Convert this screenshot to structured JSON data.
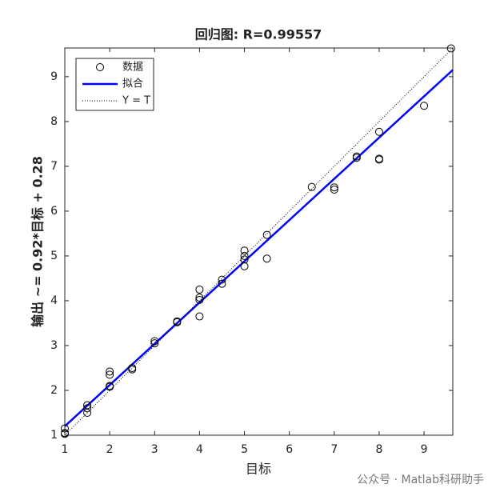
{
  "chart_data": {
    "type": "scatter",
    "title": "回归图: R=0.99557",
    "xlabel": "目标",
    "ylabel": "输出 ~= 0.92*目标 + 0.28",
    "watermark": "公众号 · Matlab科研助手",
    "xlim": [
      1,
      9.64
    ],
    "ylim": [
      1,
      9.64
    ],
    "xticks": [
      1,
      2,
      3,
      4,
      5,
      6,
      7,
      8,
      9
    ],
    "yticks": [
      1,
      2,
      3,
      4,
      5,
      6,
      7,
      8,
      9
    ],
    "legend": "upper left",
    "series": [
      {
        "name": "数据",
        "type": "scatter",
        "color": "#000000",
        "x": [
          1,
          1,
          1,
          1.5,
          1.5,
          1.5,
          2,
          2,
          2,
          2,
          2.5,
          2.5,
          3,
          3,
          3.5,
          3.5,
          4,
          4,
          4,
          4,
          4.5,
          4.5,
          5,
          5,
          5,
          5,
          5.5,
          5.5,
          6.5,
          7,
          7,
          7.5,
          7.5,
          8,
          8,
          8,
          9,
          9.6
        ],
        "values": [
          1.15,
          1.05,
          1.03,
          1.67,
          1.6,
          1.5,
          2.42,
          2.35,
          2.08,
          2.1,
          2.5,
          2.47,
          3.1,
          3.05,
          3.54,
          3.52,
          4.25,
          4.07,
          4.02,
          3.65,
          4.47,
          4.38,
          5.12,
          5.0,
          4.92,
          4.77,
          5.47,
          4.94,
          6.54,
          6.53,
          6.48,
          7.22,
          7.19,
          7.77,
          7.17,
          7.15,
          8.35,
          9.63
        ]
      },
      {
        "name": "拟合",
        "type": "line",
        "color": "#0000ff",
        "style": "solid",
        "x": [
          1,
          9.64
        ],
        "values": [
          1.2,
          9.15
        ]
      },
      {
        "name": "Y = T",
        "type": "line",
        "color": "#000000",
        "style": "dotted",
        "x": [
          1,
          9.64
        ],
        "values": [
          1,
          9.64
        ]
      }
    ]
  }
}
